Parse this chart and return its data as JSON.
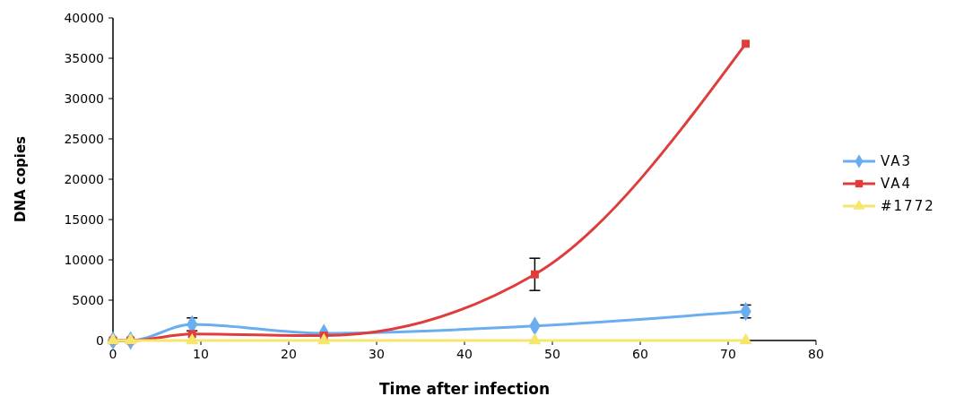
{
  "chart_data": {
    "type": "line",
    "xlabel": "Time after infection",
    "ylabel": "DNA copies",
    "x": [
      0,
      2,
      9,
      24,
      48,
      72
    ],
    "xlim": [
      0,
      80
    ],
    "xticks": [
      0,
      10,
      20,
      30,
      40,
      50,
      60,
      70,
      80
    ],
    "ylim": [
      0,
      40000
    ],
    "yticks": [
      0,
      5000,
      10000,
      15000,
      20000,
      25000,
      30000,
      35000,
      40000
    ],
    "grid": false,
    "legend": "right",
    "series": [
      {
        "name": "VA3",
        "color": "#6aaef0",
        "marker": "diamond",
        "values": [
          0,
          0,
          2000,
          900,
          1800,
          3600
        ],
        "errors": [
          null,
          null,
          800,
          null,
          null,
          800
        ]
      },
      {
        "name": "VA4",
        "color": "#e03c3c",
        "marker": "square",
        "values": [
          0,
          0,
          800,
          600,
          8200,
          36800
        ],
        "errors": [
          null,
          null,
          null,
          null,
          2000,
          null
        ]
      },
      {
        "name": "#1772",
        "color": "#f5e66e",
        "marker": "triangle",
        "values": [
          0,
          0,
          0,
          0,
          0,
          0
        ]
      }
    ]
  }
}
